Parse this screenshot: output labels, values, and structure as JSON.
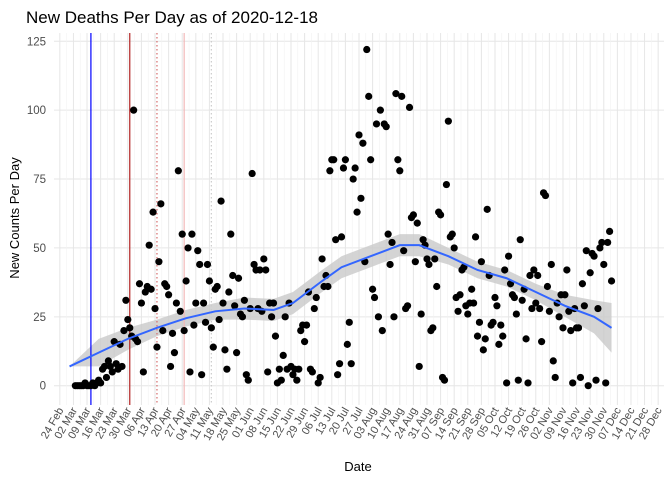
{
  "chart_data": {
    "type": "scatter",
    "title": "New Deaths Per Day as of 2020-12-18",
    "xlabel": "Date",
    "ylabel": "New Counts Per Day",
    "ylim": [
      -7,
      128
    ],
    "xlim_days": [
      -3,
      311
    ],
    "y_ticks": [
      0,
      25,
      50,
      75,
      100,
      125
    ],
    "x_tick_labels": [
      "24 Feb",
      "02 Mar",
      "09 Mar",
      "16 Mar",
      "23 Mar",
      "30 Mar",
      "06 Apr",
      "13 Apr",
      "20 Apr",
      "27 Apr",
      "04 May",
      "11 May",
      "18 May",
      "25 May",
      "01 Jun",
      "08 Jun",
      "15 Jun",
      "22 Jun",
      "29 Jun",
      "06 Jul",
      "13 Jul",
      "20 Jul",
      "27 Jul",
      "03 Aug",
      "10 Aug",
      "17 Aug",
      "24 Aug",
      "31 Aug",
      "07 Sep",
      "14 Sep",
      "21 Sep",
      "28 Sep",
      "05 Oct",
      "12 Oct",
      "19 Oct",
      "26 Oct",
      "02 Nov",
      "09 Nov",
      "16 Nov",
      "23 Nov",
      "30 Nov",
      "07 Dec",
      "14 Dec",
      "21 Dec",
      "28 Dec"
    ],
    "grid": true,
    "vertical_lines": [
      {
        "day": 16,
        "color": "#0000ff",
        "style": "solid",
        "name": "blue-vline"
      },
      {
        "day": 36,
        "color": "#b22222",
        "style": "solid",
        "name": "red-vline"
      },
      {
        "day": 50,
        "color": "#d46a6a",
        "style": "dotted",
        "name": "red-dotted-vline"
      },
      {
        "day": 64,
        "color": "#f2b8b8",
        "style": "solid",
        "name": "pink-vline"
      },
      {
        "day": 78,
        "color": "#cccccc",
        "style": "dotted",
        "name": "grey-dotted-vline"
      }
    ],
    "series": [
      {
        "name": "New deaths",
        "color": "#000000",
        "points": [
          [
            8,
            0
          ],
          [
            9,
            0
          ],
          [
            10,
            0
          ],
          [
            11,
            0
          ],
          [
            12,
            0
          ],
          [
            13,
            1
          ],
          [
            14,
            0
          ],
          [
            15,
            0
          ],
          [
            16,
            0
          ],
          [
            17,
            1
          ],
          [
            18,
            0
          ],
          [
            19,
            1
          ],
          [
            20,
            2
          ],
          [
            21,
            1
          ],
          [
            22,
            6
          ],
          [
            23,
            7
          ],
          [
            24,
            3
          ],
          [
            25,
            9
          ],
          [
            26,
            7
          ],
          [
            27,
            5
          ],
          [
            28,
            16
          ],
          [
            29,
            8
          ],
          [
            30,
            6
          ],
          [
            31,
            15
          ],
          [
            32,
            7
          ],
          [
            33,
            20
          ],
          [
            34,
            31
          ],
          [
            35,
            24
          ],
          [
            36,
            21
          ],
          [
            37,
            18
          ],
          [
            38,
            100
          ],
          [
            39,
            17
          ],
          [
            40,
            16
          ],
          [
            41,
            37
          ],
          [
            42,
            30
          ],
          [
            43,
            5
          ],
          [
            44,
            34
          ],
          [
            45,
            36
          ],
          [
            46,
            51
          ],
          [
            47,
            35
          ],
          [
            48,
            63
          ],
          [
            49,
            28
          ],
          [
            50,
            14
          ],
          [
            51,
            45
          ],
          [
            52,
            66
          ],
          [
            53,
            20
          ],
          [
            54,
            37
          ],
          [
            55,
            36
          ],
          [
            56,
            33
          ],
          [
            57,
            7
          ],
          [
            58,
            19
          ],
          [
            59,
            12
          ],
          [
            60,
            30
          ],
          [
            61,
            78
          ],
          [
            62,
            27
          ],
          [
            63,
            55
          ],
          [
            64,
            20
          ],
          [
            65,
            38
          ],
          [
            66,
            50
          ],
          [
            67,
            5
          ],
          [
            68,
            55
          ],
          [
            69,
            22
          ],
          [
            70,
            30
          ],
          [
            71,
            49
          ],
          [
            72,
            44
          ],
          [
            73,
            4
          ],
          [
            74,
            30
          ],
          [
            75,
            23
          ],
          [
            76,
            44
          ],
          [
            77,
            38
          ],
          [
            78,
            21
          ],
          [
            79,
            14
          ],
          [
            80,
            35
          ],
          [
            81,
            36
          ],
          [
            82,
            24
          ],
          [
            83,
            67
          ],
          [
            84,
            30
          ],
          [
            85,
            13
          ],
          [
            86,
            6
          ],
          [
            87,
            34
          ],
          [
            88,
            55
          ],
          [
            89,
            40
          ],
          [
            90,
            29
          ],
          [
            91,
            12
          ],
          [
            92,
            39
          ],
          [
            93,
            26
          ],
          [
            94,
            25
          ],
          [
            95,
            31
          ],
          [
            96,
            4
          ],
          [
            97,
            2
          ],
          [
            98,
            28
          ],
          [
            99,
            77
          ],
          [
            100,
            44
          ],
          [
            101,
            42
          ],
          [
            102,
            28
          ],
          [
            103,
            42
          ],
          [
            104,
            27
          ],
          [
            105,
            46
          ],
          [
            106,
            42
          ],
          [
            107,
            5
          ],
          [
            108,
            30
          ],
          [
            109,
            25
          ],
          [
            110,
            30
          ],
          [
            111,
            18
          ],
          [
            112,
            1
          ],
          [
            113,
            6
          ],
          [
            114,
            2
          ],
          [
            115,
            11
          ],
          [
            116,
            25
          ],
          [
            117,
            6
          ],
          [
            118,
            30
          ],
          [
            119,
            7
          ],
          [
            120,
            4
          ],
          [
            121,
            6
          ],
          [
            122,
            2
          ],
          [
            123,
            6
          ],
          [
            124,
            20
          ],
          [
            125,
            22
          ],
          [
            126,
            16
          ],
          [
            127,
            22
          ],
          [
            128,
            34
          ],
          [
            129,
            6
          ],
          [
            130,
            5
          ],
          [
            131,
            28
          ],
          [
            132,
            32
          ],
          [
            133,
            1
          ],
          [
            134,
            3
          ],
          [
            135,
            46
          ],
          [
            136,
            36
          ],
          [
            137,
            40
          ],
          [
            138,
            36
          ],
          [
            139,
            78
          ],
          [
            140,
            82
          ],
          [
            141,
            82
          ],
          [
            142,
            53
          ],
          [
            143,
            4
          ],
          [
            144,
            8
          ],
          [
            145,
            54
          ],
          [
            146,
            79
          ],
          [
            147,
            82
          ],
          [
            148,
            15
          ],
          [
            149,
            23
          ],
          [
            150,
            8
          ],
          [
            151,
            75
          ],
          [
            152,
            79
          ],
          [
            153,
            63
          ],
          [
            154,
            91
          ],
          [
            155,
            68
          ],
          [
            156,
            88
          ],
          [
            157,
            45
          ],
          [
            158,
            122
          ],
          [
            159,
            105
          ],
          [
            160,
            82
          ],
          [
            161,
            35
          ],
          [
            162,
            32
          ],
          [
            163,
            95
          ],
          [
            164,
            25
          ],
          [
            165,
            100
          ],
          [
            166,
            20
          ],
          [
            167,
            95
          ],
          [
            168,
            94
          ],
          [
            169,
            55
          ],
          [
            170,
            44
          ],
          [
            171,
            52
          ],
          [
            172,
            25
          ],
          [
            173,
            106
          ],
          [
            174,
            82
          ],
          [
            175,
            78
          ],
          [
            176,
            105
          ],
          [
            177,
            49
          ],
          [
            178,
            28
          ],
          [
            179,
            29
          ],
          [
            180,
            101
          ],
          [
            181,
            61
          ],
          [
            182,
            62
          ],
          [
            183,
            45
          ],
          [
            184,
            59
          ],
          [
            185,
            7
          ],
          [
            186,
            26
          ],
          [
            187,
            53
          ],
          [
            188,
            51
          ],
          [
            189,
            46
          ],
          [
            190,
            44
          ],
          [
            191,
            20
          ],
          [
            192,
            21
          ],
          [
            193,
            46
          ],
          [
            194,
            36
          ],
          [
            195,
            63
          ],
          [
            196,
            62
          ],
          [
            197,
            3
          ],
          [
            198,
            2
          ],
          [
            199,
            73
          ],
          [
            200,
            96
          ],
          [
            201,
            54
          ],
          [
            202,
            55
          ],
          [
            203,
            50
          ],
          [
            204,
            32
          ],
          [
            205,
            27
          ],
          [
            206,
            33
          ],
          [
            207,
            42
          ],
          [
            208,
            43
          ],
          [
            209,
            29
          ],
          [
            210,
            26
          ],
          [
            211,
            30
          ],
          [
            212,
            35
          ],
          [
            213,
            30
          ],
          [
            214,
            54
          ],
          [
            215,
            18
          ],
          [
            216,
            23
          ],
          [
            217,
            45
          ],
          [
            218,
            13
          ],
          [
            219,
            17
          ],
          [
            220,
            64
          ],
          [
            221,
            40
          ],
          [
            222,
            22
          ],
          [
            223,
            23
          ],
          [
            224,
            32
          ],
          [
            225,
            29
          ],
          [
            226,
            15
          ],
          [
            227,
            22
          ],
          [
            228,
            18
          ],
          [
            229,
            42
          ],
          [
            230,
            1
          ],
          [
            231,
            47
          ],
          [
            232,
            37
          ],
          [
            233,
            33
          ],
          [
            234,
            32
          ],
          [
            235,
            26
          ],
          [
            236,
            2
          ],
          [
            237,
            53
          ],
          [
            238,
            31
          ],
          [
            239,
            35
          ],
          [
            240,
            17
          ],
          [
            241,
            1
          ],
          [
            242,
            40
          ],
          [
            243,
            28
          ],
          [
            244,
            42
          ],
          [
            245,
            30
          ],
          [
            246,
            40
          ],
          [
            247,
            28
          ],
          [
            248,
            16
          ],
          [
            249,
            70
          ],
          [
            250,
            69
          ],
          [
            251,
            36
          ],
          [
            252,
            27
          ],
          [
            253,
            44
          ],
          [
            254,
            9
          ],
          [
            255,
            3
          ],
          [
            256,
            30
          ],
          [
            257,
            25
          ],
          [
            258,
            33
          ],
          [
            259,
            21
          ],
          [
            260,
            33
          ],
          [
            261,
            42
          ],
          [
            262,
            27
          ],
          [
            263,
            20
          ],
          [
            264,
            1
          ],
          [
            265,
            28
          ],
          [
            266,
            21
          ],
          [
            267,
            21
          ],
          [
            268,
            3
          ],
          [
            269,
            37
          ],
          [
            270,
            29
          ],
          [
            271,
            49
          ],
          [
            272,
            0
          ],
          [
            273,
            41
          ],
          [
            274,
            48
          ],
          [
            275,
            47
          ],
          [
            276,
            2
          ],
          [
            277,
            28
          ],
          [
            278,
            50
          ],
          [
            279,
            52
          ],
          [
            280,
            44
          ],
          [
            281,
            1
          ],
          [
            282,
            52
          ],
          [
            283,
            56
          ],
          [
            284,
            38
          ]
        ]
      }
    ],
    "smooth": {
      "name": "Loess trend",
      "color": "#3366ff",
      "band_color": "#c9c9c9",
      "points": [
        [
          5,
          7
        ],
        [
          20,
          12
        ],
        [
          35,
          17
        ],
        [
          50,
          21
        ],
        [
          65,
          24.5
        ],
        [
          80,
          27
        ],
        [
          95,
          28
        ],
        [
          110,
          27.5
        ],
        [
          120,
          30
        ],
        [
          135,
          38
        ],
        [
          145,
          43
        ],
        [
          160,
          47
        ],
        [
          175,
          51
        ],
        [
          185,
          51
        ],
        [
          200,
          47
        ],
        [
          215,
          42
        ],
        [
          230,
          39
        ],
        [
          245,
          34
        ],
        [
          260,
          29
        ],
        [
          275,
          25
        ],
        [
          284,
          21
        ]
      ],
      "band_half_width": [
        [
          5,
          0
        ],
        [
          20,
          5
        ],
        [
          35,
          4
        ],
        [
          50,
          3
        ],
        [
          65,
          3
        ],
        [
          80,
          3
        ],
        [
          95,
          4
        ],
        [
          110,
          4
        ],
        [
          120,
          4
        ],
        [
          135,
          4
        ],
        [
          145,
          4
        ],
        [
          160,
          4
        ],
        [
          175,
          4
        ],
        [
          185,
          4
        ],
        [
          200,
          3
        ],
        [
          215,
          3
        ],
        [
          230,
          3
        ],
        [
          245,
          3
        ],
        [
          260,
          4
        ],
        [
          275,
          6
        ],
        [
          284,
          9
        ]
      ]
    }
  }
}
